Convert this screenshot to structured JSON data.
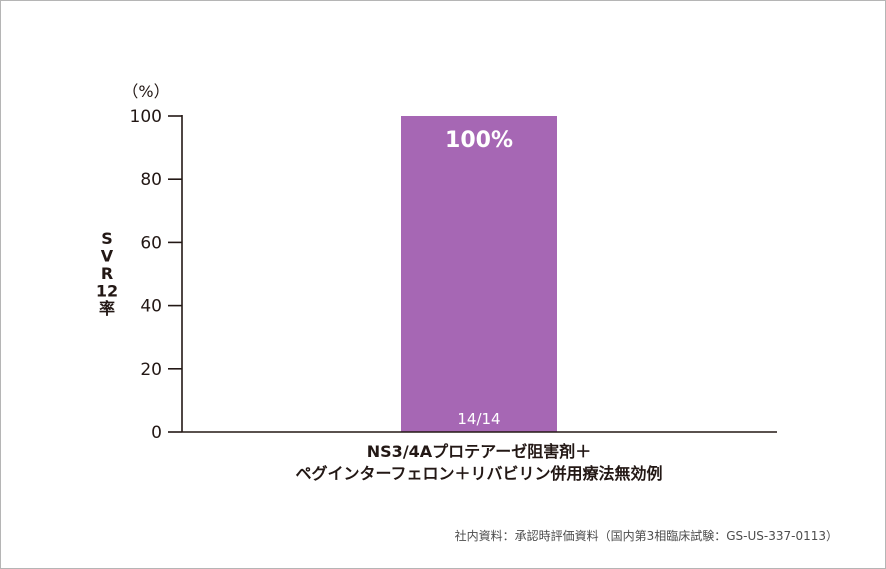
{
  "chart_data": {
    "type": "bar",
    "categories": [
      "NS3/4Aプロテアーゼ阻害剤＋\nペグインターフェロン＋リバビリン併用療法無効例"
    ],
    "values": [
      100
    ],
    "data_labels": [
      "100%"
    ],
    "n_labels": [
      "14/14"
    ],
    "ylabel": "SVR12率",
    "yunit": "（%）",
    "ylim": [
      0,
      100
    ],
    "yticks": [
      0,
      20,
      40,
      60,
      80,
      100
    ],
    "grid": false,
    "bar_color": "#a667b4"
  },
  "source": "社内資料：承認時評価資料（国内第3相臨床試験：GS-US-337-0113）"
}
